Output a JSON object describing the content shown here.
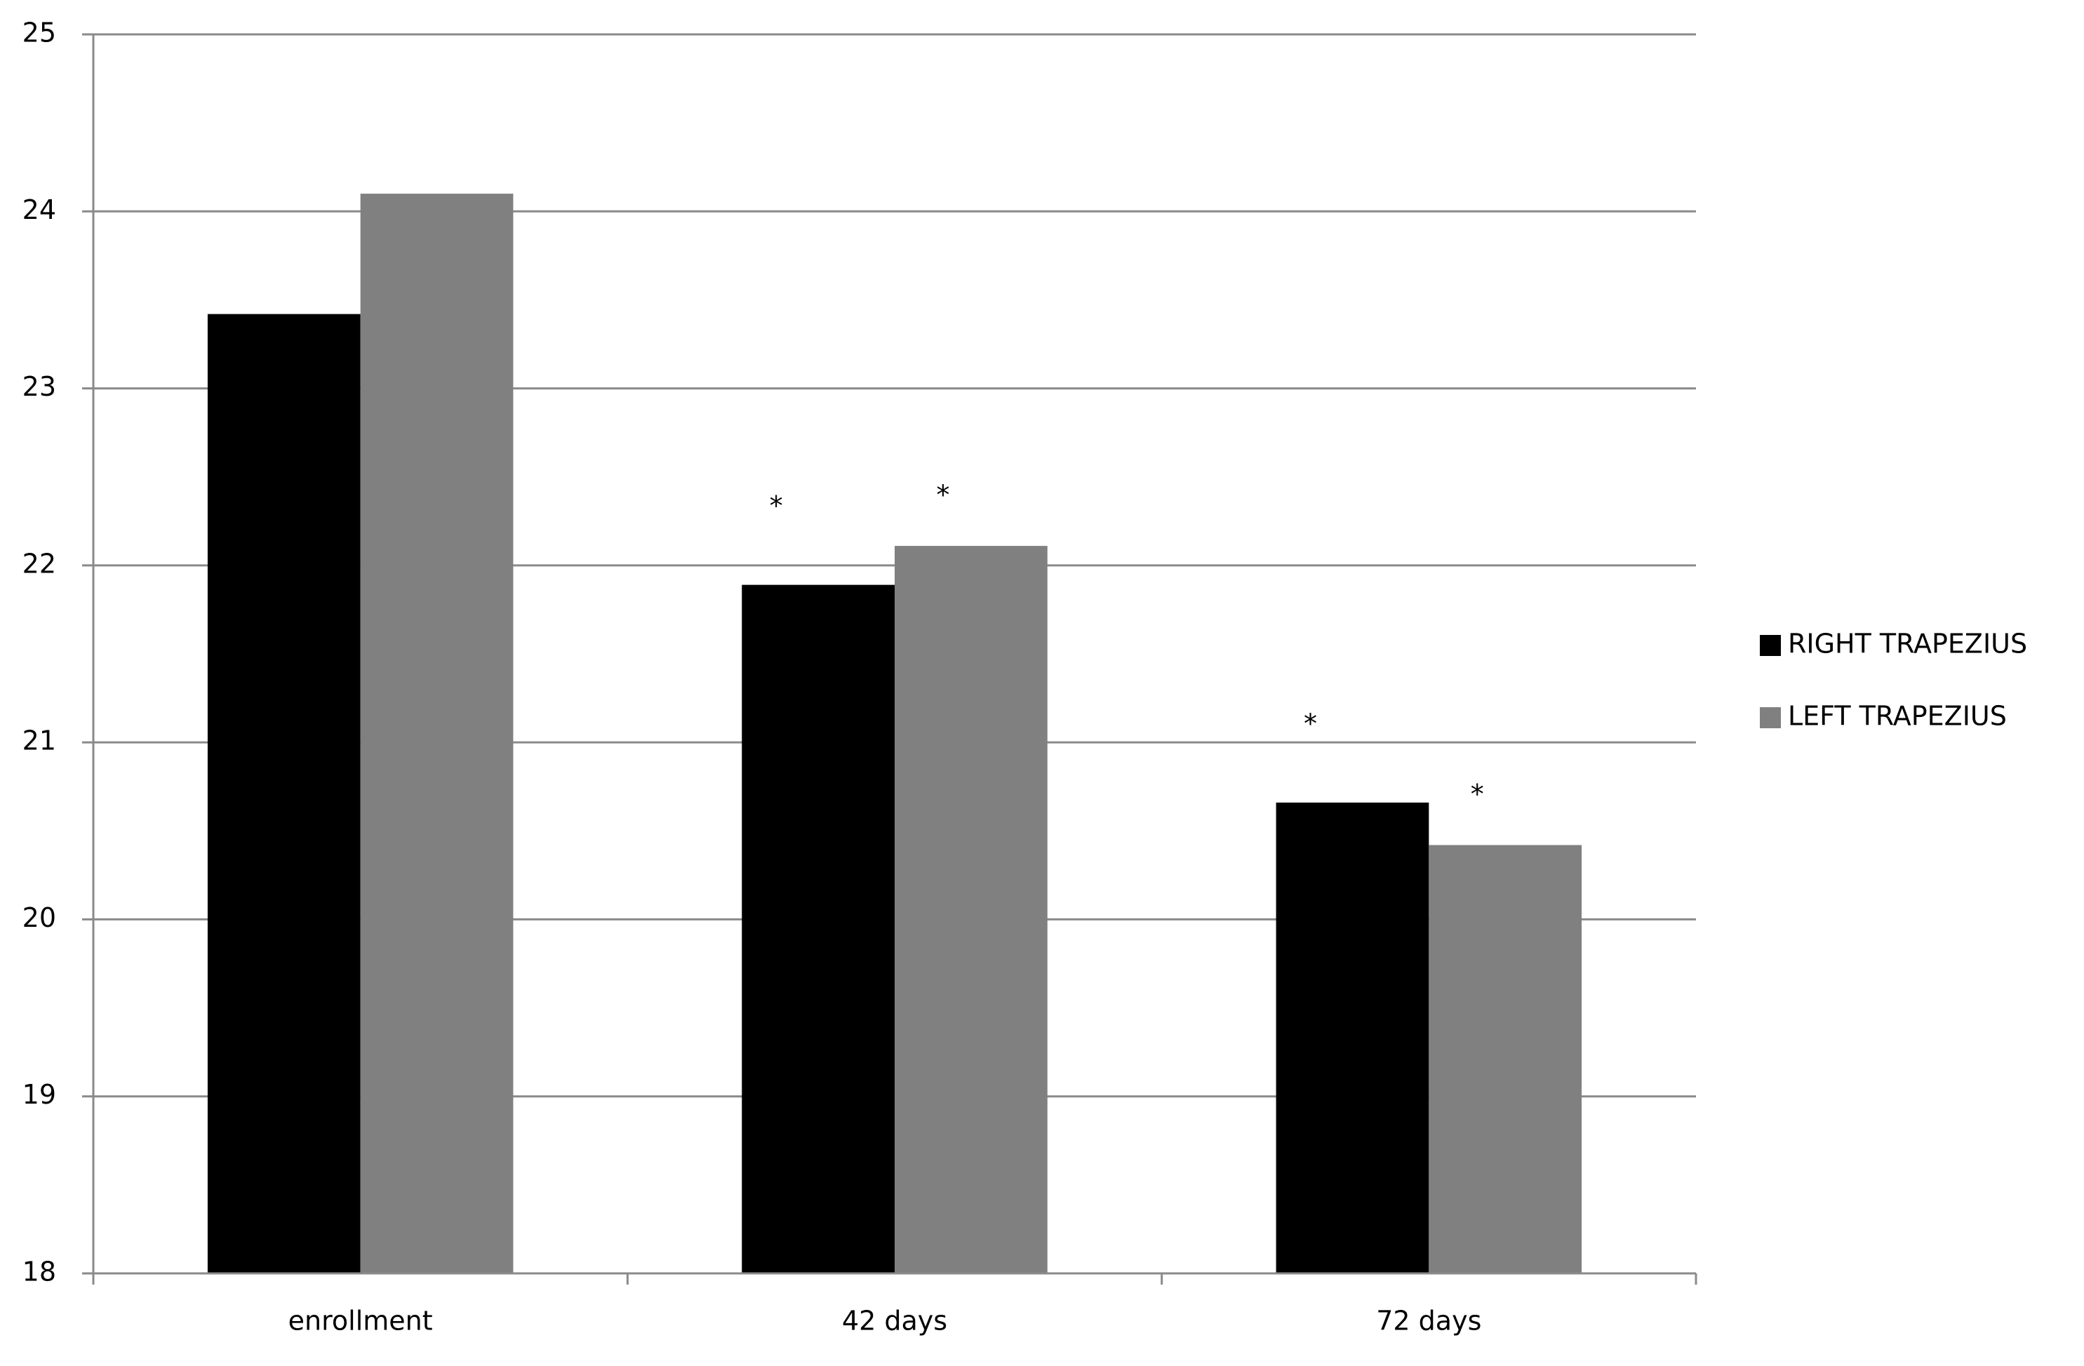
{
  "chart_data": {
    "type": "bar",
    "categories": [
      "enrollment",
      "42 days",
      "72 days"
    ],
    "series": [
      {
        "name": "RIGHT TRAPEZIUS",
        "color": "#000000",
        "values": [
          23.42,
          21.89,
          20.66
        ],
        "significance": [
          null,
          "*",
          "*"
        ]
      },
      {
        "name": "LEFT TRAPEZIUS",
        "color": "#808080",
        "values": [
          24.1,
          22.11,
          20.42
        ],
        "significance": [
          null,
          "*",
          "*"
        ]
      }
    ],
    "ylim": [
      18,
      25
    ],
    "yticks": [
      18,
      19,
      20,
      21,
      22,
      23,
      24,
      25
    ],
    "grid": true,
    "legend": "right"
  }
}
